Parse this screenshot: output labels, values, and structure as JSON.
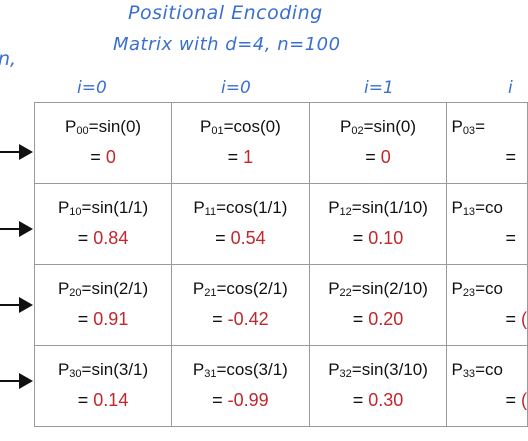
{
  "title": {
    "line1": "Positional Encoding",
    "line2": "Matrix with d=4, n=100"
  },
  "side_text_fragment": "n,",
  "column_headers": [
    "i=0",
    "i=0",
    "i=1",
    "i"
  ],
  "colors": {
    "annotation": "#3a6fd0",
    "value": "#c1272d",
    "grid": "#9a9a9a"
  },
  "rows": [
    {
      "cells": [
        {
          "sub": "00",
          "expr": "=sin(0)",
          "value": "0"
        },
        {
          "sub": "01",
          "expr": "=cos(0)",
          "value": "1"
        },
        {
          "sub": "02",
          "expr": "=sin(0)",
          "value": "0"
        },
        {
          "sub": "03",
          "expr": "=",
          "value": ""
        }
      ]
    },
    {
      "cells": [
        {
          "sub": "10",
          "expr": "=sin(1/1)",
          "value": "0.84"
        },
        {
          "sub": "11",
          "expr": "=cos(1/1)",
          "value": "0.54"
        },
        {
          "sub": "12",
          "expr": "=sin(1/10)",
          "value": "0.10"
        },
        {
          "sub": "13",
          "expr": "=co",
          "value": ""
        }
      ]
    },
    {
      "cells": [
        {
          "sub": "20",
          "expr": "=sin(2/1)",
          "value": "0.91"
        },
        {
          "sub": "21",
          "expr": "=cos(2/1)",
          "value": "-0.42"
        },
        {
          "sub": "22",
          "expr": "=sin(2/10)",
          "value": "0.20"
        },
        {
          "sub": "23",
          "expr": "=co",
          "value": "("
        }
      ]
    },
    {
      "cells": [
        {
          "sub": "30",
          "expr": "=sin(3/1)",
          "value": "0.14"
        },
        {
          "sub": "31",
          "expr": "=cos(3/1)",
          "value": "-0.99"
        },
        {
          "sub": "32",
          "expr": "=sin(3/10)",
          "value": "0.30"
        },
        {
          "sub": "33",
          "expr": "=co",
          "value": "("
        }
      ]
    }
  ]
}
